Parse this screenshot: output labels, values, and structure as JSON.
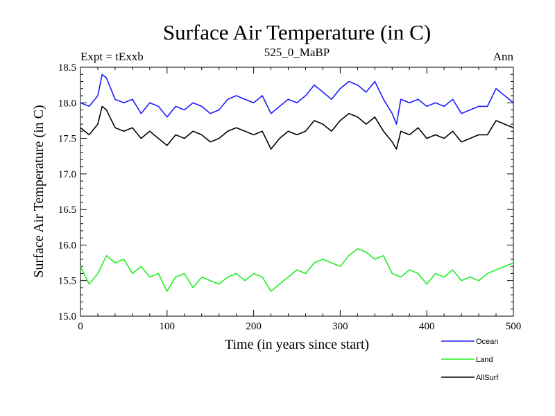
{
  "chart_data": {
    "type": "line",
    "title": "Surface Air Temperature (in C)",
    "subtitle": "525_0_MaBP",
    "left_label": "Expt = tExxb",
    "right_label": "Ann",
    "xlabel": "Time (in years since start)",
    "ylabel": "Surface Air Temperature (in C)",
    "xlim": [
      0,
      500
    ],
    "ylim": [
      15.0,
      18.5
    ],
    "xticks": [
      0,
      100,
      200,
      300,
      400,
      500
    ],
    "yticks": [
      15.0,
      15.5,
      16.0,
      16.5,
      17.0,
      17.5,
      18.0,
      18.5
    ],
    "legend_position": "bottom-right",
    "series": [
      {
        "name": "Ocean",
        "color": "#1a1aff",
        "x": [
          0,
          10,
          20,
          25,
          30,
          40,
          50,
          60,
          70,
          80,
          90,
          100,
          110,
          120,
          130,
          140,
          150,
          160,
          170,
          180,
          190,
          200,
          210,
          220,
          230,
          240,
          250,
          260,
          270,
          280,
          290,
          300,
          310,
          320,
          330,
          340,
          350,
          360,
          365,
          370,
          380,
          390,
          400,
          410,
          420,
          430,
          440,
          450,
          460,
          470,
          480,
          490,
          500
        ],
        "values": [
          18.0,
          17.95,
          18.1,
          18.4,
          18.35,
          18.05,
          18.0,
          18.05,
          17.85,
          18.0,
          17.95,
          17.8,
          17.95,
          17.9,
          18.0,
          17.95,
          17.85,
          17.9,
          18.05,
          18.1,
          18.05,
          18.0,
          18.1,
          17.85,
          17.95,
          18.05,
          18.0,
          18.1,
          18.25,
          18.15,
          18.05,
          18.2,
          18.3,
          18.25,
          18.15,
          18.3,
          18.05,
          17.85,
          17.7,
          18.05,
          18.0,
          18.05,
          17.95,
          18.0,
          17.95,
          18.05,
          17.85,
          17.9,
          17.95,
          17.95,
          18.2,
          18.1,
          18.0
        ]
      },
      {
        "name": "Land",
        "color": "#22ee22",
        "x": [
          0,
          10,
          20,
          30,
          40,
          50,
          60,
          70,
          80,
          90,
          100,
          110,
          120,
          130,
          140,
          150,
          160,
          170,
          180,
          190,
          200,
          210,
          220,
          230,
          240,
          250,
          260,
          270,
          280,
          290,
          300,
          310,
          320,
          330,
          340,
          350,
          360,
          370,
          380,
          390,
          400,
          410,
          420,
          430,
          440,
          450,
          460,
          470,
          480,
          490,
          500
        ],
        "values": [
          15.7,
          15.45,
          15.6,
          15.85,
          15.75,
          15.8,
          15.6,
          15.7,
          15.55,
          15.6,
          15.35,
          15.55,
          15.6,
          15.4,
          15.55,
          15.5,
          15.45,
          15.55,
          15.6,
          15.5,
          15.6,
          15.55,
          15.35,
          15.45,
          15.55,
          15.65,
          15.6,
          15.75,
          15.8,
          15.75,
          15.7,
          15.85,
          15.95,
          15.9,
          15.8,
          15.85,
          15.6,
          15.55,
          15.65,
          15.6,
          15.45,
          15.6,
          15.55,
          15.65,
          15.5,
          15.55,
          15.5,
          15.6,
          15.65,
          15.7,
          15.75
        ]
      },
      {
        "name": "AllSurf",
        "color": "#000000",
        "x": [
          0,
          10,
          20,
          25,
          30,
          40,
          50,
          60,
          70,
          80,
          90,
          100,
          110,
          120,
          130,
          140,
          150,
          160,
          170,
          180,
          190,
          200,
          210,
          220,
          230,
          240,
          250,
          260,
          270,
          280,
          290,
          300,
          310,
          320,
          330,
          340,
          350,
          360,
          365,
          370,
          380,
          390,
          400,
          410,
          420,
          430,
          440,
          450,
          460,
          470,
          480,
          490,
          500
        ],
        "values": [
          17.65,
          17.55,
          17.7,
          17.95,
          17.9,
          17.65,
          17.6,
          17.65,
          17.5,
          17.6,
          17.5,
          17.4,
          17.55,
          17.5,
          17.6,
          17.55,
          17.45,
          17.5,
          17.6,
          17.65,
          17.6,
          17.55,
          17.6,
          17.35,
          17.5,
          17.6,
          17.55,
          17.6,
          17.75,
          17.7,
          17.6,
          17.75,
          17.85,
          17.8,
          17.7,
          17.8,
          17.6,
          17.45,
          17.35,
          17.6,
          17.55,
          17.65,
          17.5,
          17.55,
          17.5,
          17.6,
          17.45,
          17.5,
          17.55,
          17.55,
          17.75,
          17.7,
          17.65
        ]
      }
    ]
  }
}
